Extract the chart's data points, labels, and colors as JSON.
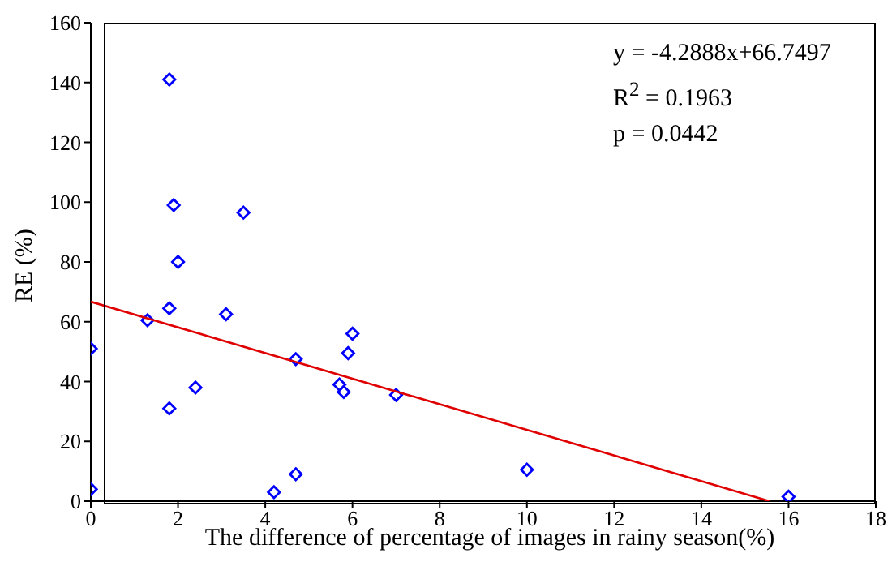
{
  "chart_data": {
    "type": "scatter",
    "xlabel": "The difference of percentage of images in rainy season(%)",
    "ylabel": "RE (%)",
    "series": [
      {
        "color": "#0000ff",
        "marker": "diamond",
        "x": [
          0,
          0,
          1.8,
          1.9,
          2.0,
          1.8,
          1.3,
          1.8,
          2.4,
          3.1,
          3.5,
          4.7,
          4.7,
          4.2,
          5.7,
          5.8,
          5.9,
          6.0,
          7.0,
          10.0,
          16.0
        ],
        "values": [
          51,
          4,
          141,
          99,
          80,
          64.5,
          60.5,
          31,
          38,
          62.5,
          96.5,
          47.5,
          9,
          3,
          39,
          36.5,
          49.5,
          56,
          35.5,
          10.5,
          1.5
        ]
      },
      {
        "type": "line",
        "color": "#e00000",
        "marker": "none",
        "x": [
          0,
          15.56
        ],
        "values": [
          66.7,
          0
        ]
      }
    ],
    "xlim": [
      0,
      18
    ],
    "xticks": [
      0,
      2,
      4,
      6,
      8,
      10,
      12,
      14,
      16,
      18
    ],
    "ylim": [
      0,
      160
    ],
    "yticks": [
      0,
      20,
      40,
      60,
      80,
      100,
      120,
      140,
      160
    ],
    "annotations": [
      "y = -4.2888x+66.7497",
      "R$^{2}$ = 0.1963",
      "p = 0.0442"
    ]
  }
}
